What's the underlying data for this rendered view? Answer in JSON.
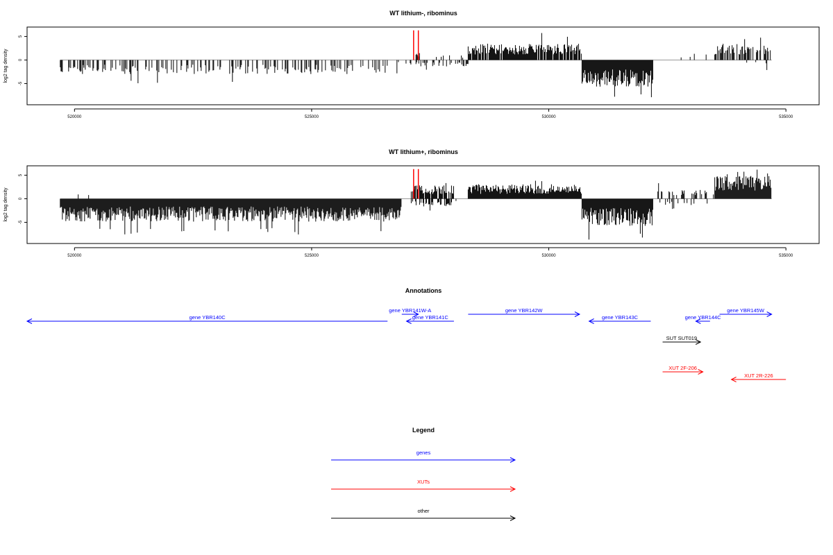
{
  "colors": {
    "genes": "#0000ff",
    "xuts": "#ff0000",
    "other": "#000000",
    "bars": "#000000",
    "baseline": "#999999"
  },
  "chart_data": [
    {
      "type": "bar",
      "title": "WT lithium-, ribominus",
      "ylabel": "log2 tag density",
      "xlim": [
        519000,
        535700
      ],
      "ylim": [
        -9.5,
        7
      ],
      "x_ticks": [
        520000,
        525000,
        530000,
        535000
      ],
      "x_tick_labels": [
        "520000",
        "525000",
        "530000",
        "535000"
      ],
      "y_ticks": [
        -5,
        0,
        5
      ],
      "y_tick_labels": [
        "-5",
        "0",
        "5"
      ],
      "grid": false,
      "segments": [
        {
          "strand": "minus",
          "start": 519700,
          "end": 526800,
          "typical": -2.2,
          "peak": -5.3,
          "density": 0.35,
          "seed": 11
        },
        {
          "strand": "minus",
          "start": 526800,
          "end": 527100,
          "typical": -0.8,
          "peak": -1.5,
          "density": 0.2,
          "seed": 12
        },
        {
          "strand": "minus",
          "start": 527200,
          "end": 528300,
          "typical": -1.0,
          "peak": -2.1,
          "density": 0.3,
          "seed": 13
        },
        {
          "strand": "plus",
          "start": 527200,
          "end": 527300,
          "typical": 1.2,
          "peak": 2.2,
          "density": 0.4,
          "seed": 14
        },
        {
          "strand": "plus",
          "start": 527600,
          "end": 528300,
          "typical": 1.0,
          "peak": 3.6,
          "density": 0.12,
          "seed": 15
        },
        {
          "strand": "plus",
          "start": 528300,
          "end": 530700,
          "typical": 2.6,
          "peak": 6.0,
          "density": 0.85,
          "seed": 16
        },
        {
          "strand": "minus",
          "start": 530700,
          "end": 532200,
          "typical": -4.2,
          "peak": -8.0,
          "density": 1.0,
          "seed": 17
        },
        {
          "strand": "plus",
          "start": 532600,
          "end": 533500,
          "typical": 1.0,
          "peak": 1.6,
          "density": 0.05,
          "seed": 18
        },
        {
          "strand": "plus",
          "start": 533500,
          "end": 534700,
          "typical": 2.6,
          "peak": 4.8,
          "density": 0.6,
          "seed": 19
        },
        {
          "strand": "minus",
          "start": 533500,
          "end": 534700,
          "typical": -0.8,
          "peak": -2.2,
          "density": 0.08,
          "seed": 20
        }
      ],
      "highlights": [
        {
          "x": 527150,
          "value": 6.3
        },
        {
          "x": 527250,
          "value": 6.3
        }
      ]
    },
    {
      "type": "bar",
      "title": "WT lithium+, ribominus",
      "ylabel": "log2 tag density",
      "xlim": [
        519000,
        535700
      ],
      "ylim": [
        -9.5,
        7
      ],
      "x_ticks": [
        520000,
        525000,
        530000,
        535000
      ],
      "x_tick_labels": [
        "520000",
        "525000",
        "530000",
        "535000"
      ],
      "y_ticks": [
        -5,
        0,
        5
      ],
      "y_tick_labels": [
        "-5",
        "0",
        "5"
      ],
      "grid": false,
      "segments": [
        {
          "strand": "minus",
          "start": 519700,
          "end": 526900,
          "typical": -3.6,
          "peak": -7.8,
          "density": 1.0,
          "seed": 31
        },
        {
          "strand": "plus",
          "start": 519800,
          "end": 520400,
          "typical": 0.9,
          "peak": 1.8,
          "density": 0.1,
          "seed": 32
        },
        {
          "strand": "plus",
          "start": 527100,
          "end": 528000,
          "typical": 2.2,
          "peak": 3.8,
          "density": 0.8,
          "seed": 33
        },
        {
          "strand": "minus",
          "start": 527100,
          "end": 528000,
          "typical": -1.2,
          "peak": -2.5,
          "density": 0.5,
          "seed": 34
        },
        {
          "strand": "plus",
          "start": 528300,
          "end": 530700,
          "typical": 2.3,
          "peak": 4.5,
          "density": 1.0,
          "seed": 35
        },
        {
          "strand": "minus",
          "start": 528000,
          "end": 528400,
          "typical": -0.6,
          "peak": -1.0,
          "density": 0.05,
          "seed": 36
        },
        {
          "strand": "minus",
          "start": 530700,
          "end": 532200,
          "typical": -4.3,
          "peak": -9.0,
          "density": 1.0,
          "seed": 37
        },
        {
          "strand": "plus",
          "start": 532300,
          "end": 533500,
          "typical": 1.4,
          "peak": 3.5,
          "density": 0.3,
          "seed": 38
        },
        {
          "strand": "minus",
          "start": 532300,
          "end": 533500,
          "typical": -1.0,
          "peak": -2.4,
          "density": 0.15,
          "seed": 39
        },
        {
          "strand": "plus",
          "start": 533500,
          "end": 534700,
          "typical": 3.6,
          "peak": 6.4,
          "density": 1.0,
          "seed": 40
        }
      ],
      "highlights": [
        {
          "x": 527150,
          "value": 6.3
        },
        {
          "x": 527250,
          "value": 6.3
        }
      ]
    }
  ],
  "annotations": {
    "title": "Annotations",
    "items": [
      {
        "label": "gene YBR140C",
        "start": 519000,
        "end": 526600,
        "strand": "minus",
        "kind": "genes",
        "row": 1
      },
      {
        "label": "gene YBR141W-A",
        "start": 526900,
        "end": 527250,
        "strand": "plus",
        "kind": "genes",
        "row": 0
      },
      {
        "label": "gene YBR141C",
        "start": 527000,
        "end": 528000,
        "strand": "minus",
        "kind": "genes",
        "row": 1
      },
      {
        "label": "gene YBR142W",
        "start": 528300,
        "end": 530650,
        "strand": "plus",
        "kind": "genes",
        "row": 0
      },
      {
        "label": "gene YBR143C",
        "start": 530850,
        "end": 532150,
        "strand": "minus",
        "kind": "genes",
        "row": 1
      },
      {
        "label": "gene YBR144C",
        "start": 533100,
        "end": 533400,
        "strand": "minus",
        "kind": "genes",
        "row": 1
      },
      {
        "label": "gene YBR145W",
        "start": 533600,
        "end": 534700,
        "strand": "plus",
        "kind": "genes",
        "row": 0
      },
      {
        "label": "SUT SUT019",
        "start": 532400,
        "end": 533200,
        "strand": "plus",
        "kind": "other",
        "row": 3
      },
      {
        "label": "XUT 2F-206",
        "start": 532400,
        "end": 533250,
        "strand": "plus",
        "kind": "xuts",
        "row": 5
      },
      {
        "label": "XUT 2R-226",
        "start": 533850,
        "end": 535000,
        "strand": "minus",
        "kind": "xuts",
        "row": 6
      }
    ]
  },
  "legend": {
    "title": "Legend",
    "items": [
      {
        "label": "genes",
        "kind": "genes"
      },
      {
        "label": "XUTs",
        "kind": "xuts"
      },
      {
        "label": "other",
        "kind": "other"
      }
    ]
  }
}
